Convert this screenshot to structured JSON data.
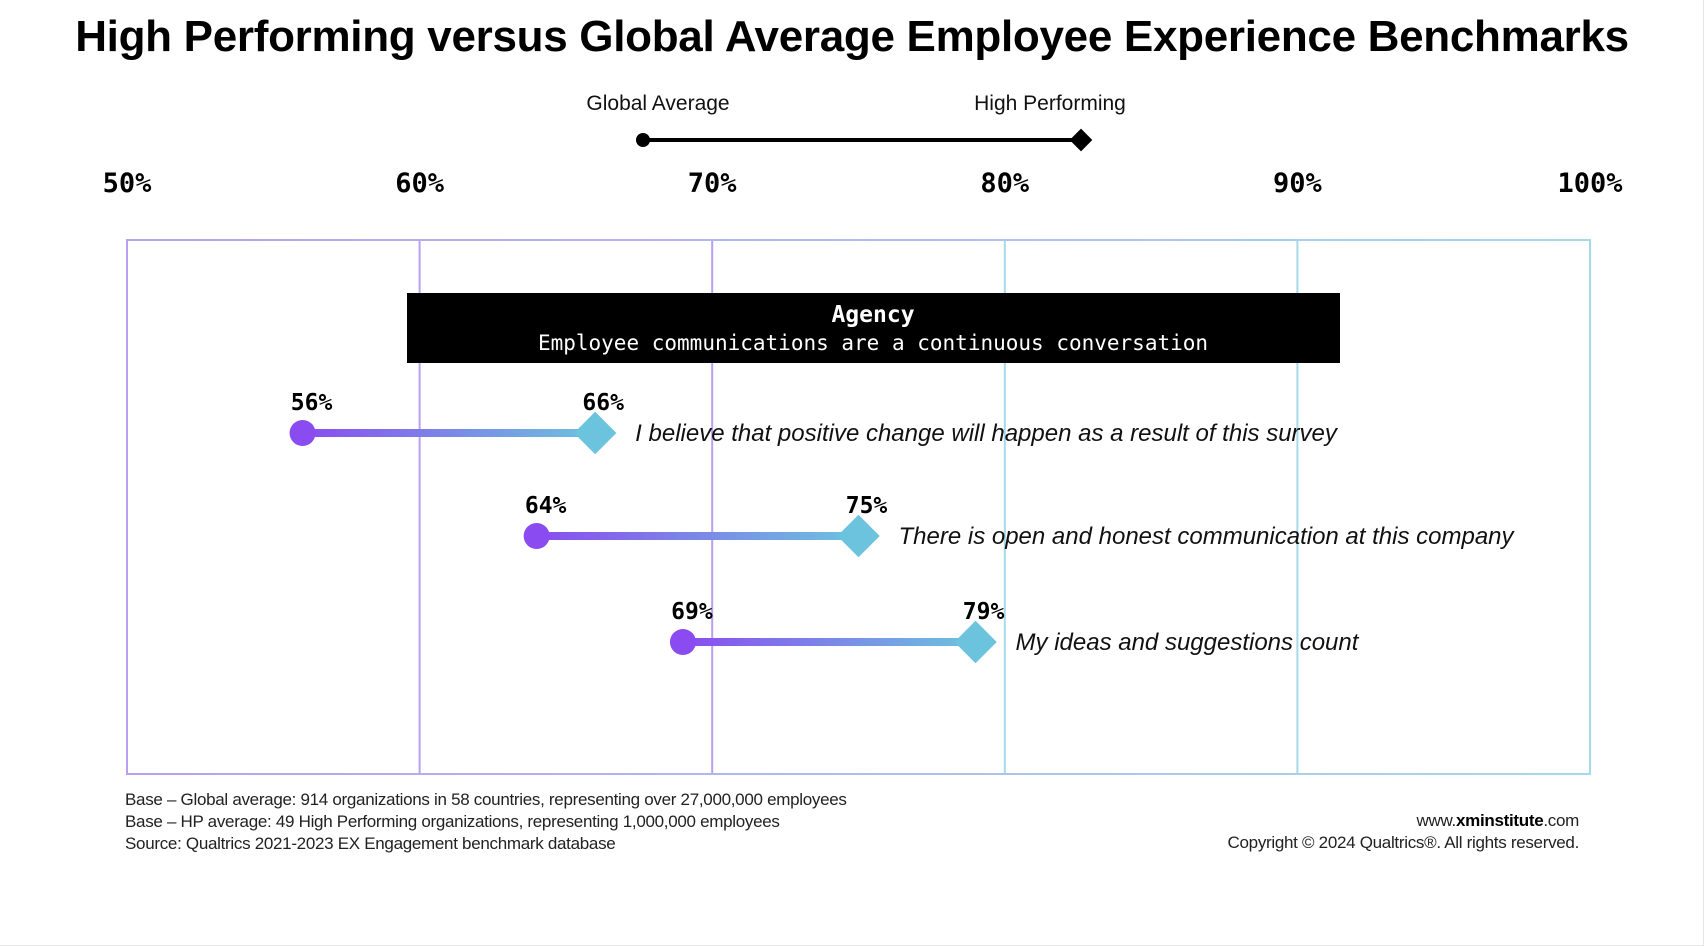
{
  "title": "High Performing versus Global Average Employee Experience Benchmarks",
  "legend": {
    "global_label": "Global Average",
    "high_label": "High Performing"
  },
  "colors": {
    "purple": "#8a4cf0",
    "blue": "#6cc3de",
    "black": "#000000",
    "grid_purple": "#b9a0f0",
    "grid_blue": "#a6d9ea"
  },
  "chart_data": {
    "type": "dumbbell",
    "xlim": [
      50,
      100
    ],
    "ticks": [
      "50%",
      "60%",
      "70%",
      "80%",
      "90%",
      "100%"
    ],
    "tick_values": [
      50,
      60,
      70,
      80,
      90,
      100
    ],
    "section": {
      "title": "Agency",
      "subtitle": "Employee communications are a continuous conversation"
    },
    "series_names": [
      "Global Average",
      "High Performing"
    ],
    "items": [
      {
        "label": "I believe that positive change will happen as a result of this survey",
        "global": 56,
        "high": 66,
        "global_text": "56%",
        "high_text": "66%"
      },
      {
        "label": "There is open and honest communication at this company",
        "global": 64,
        "high": 75,
        "global_text": "64%",
        "high_text": "75%"
      },
      {
        "label": "My ideas and suggestions count",
        "global": 69,
        "high": 79,
        "global_text": "69%",
        "high_text": "79%"
      }
    ]
  },
  "footer": {
    "base_global": "Base – Global average: 914 organizations in 58 countries, representing over 27,000,000 employees",
    "base_hp": "Base – HP average: 49 High Performing organizations,  representing 1,000,000 employees",
    "source": "Source: Qualtrics 2021-2023 EX Engagement benchmark database",
    "site_prefix": "www.",
    "site_bold": "xminstitute",
    "site_suffix": ".com",
    "copyright": "Copyright © 2024 Qualtrics®. All rights reserved."
  }
}
